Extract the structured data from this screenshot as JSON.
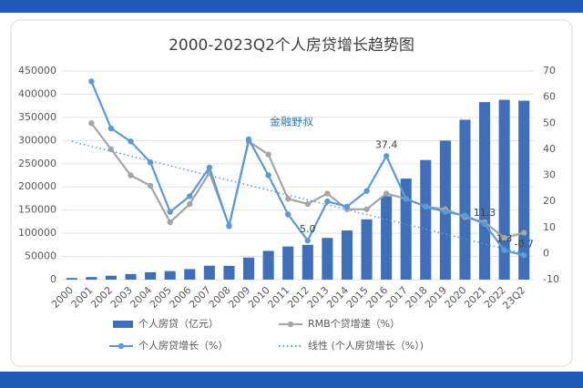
{
  "chart_data": {
    "type": "bar",
    "title": "2000-2023Q2个人房贷增长趋势图",
    "annotation": "金融野叔",
    "categories": [
      "2000",
      "2001",
      "2002",
      "2003",
      "2004",
      "2005",
      "2006",
      "2007",
      "2008",
      "2009",
      "2010",
      "2011",
      "2012",
      "2013",
      "2014",
      "2015",
      "2016",
      "2017",
      "2018",
      "2019",
      "2020",
      "2021",
      "2022",
      "23Q2"
    ],
    "ylim": [
      0,
      450000
    ],
    "yticks": [
      0,
      50000,
      100000,
      150000,
      200000,
      250000,
      300000,
      350000,
      400000,
      450000
    ],
    "y2lim": [
      -10,
      70
    ],
    "y2ticks": [
      -10,
      0,
      10,
      20,
      30,
      40,
      50,
      60,
      70
    ],
    "series": [
      {
        "name": "个人房贷（亿元）",
        "type": "bar",
        "color": "#3f6fb8",
        "values": [
          3400,
          5600,
          8300,
          12000,
          16000,
          18400,
          22700,
          30000,
          29800,
          47600,
          62000,
          71400,
          75000,
          90000,
          106000,
          130000,
          180000,
          218000,
          258000,
          300000,
          345000,
          383000,
          388000,
          386000
        ]
      },
      {
        "name": "RMB个贷增速（%）",
        "type": "line",
        "axis": "y2",
        "color": "#a5a5a5",
        "values": [
          null,
          50,
          40,
          30,
          26,
          12,
          19,
          31,
          10.8,
          43,
          38,
          21,
          19,
          23,
          17,
          17,
          23,
          21,
          18,
          17,
          14,
          12,
          6,
          8
        ]
      },
      {
        "name": "个人房贷增长（%）",
        "type": "line",
        "axis": "y2",
        "color": "#5b9bd5",
        "values": [
          null,
          66,
          48,
          43,
          35,
          16,
          22,
          33,
          10.5,
          43.8,
          30,
          15,
          5.0,
          20,
          18,
          24,
          37.4,
          21,
          18,
          16,
          14.6,
          11.3,
          1.3,
          -0.7
        ],
        "value_labels": [
          null,
          null,
          null,
          null,
          null,
          null,
          null,
          null,
          null,
          null,
          null,
          null,
          "5.0",
          null,
          null,
          null,
          "37.4",
          null,
          null,
          null,
          null,
          "11.3",
          "1.3",
          "-0.7"
        ]
      },
      {
        "name": "线性 (个人房贷增长（%）)",
        "type": "trend",
        "axis": "y2",
        "color": "#5b9bd5",
        "values": [
          43,
          41.1,
          39.3,
          37.4,
          35.5,
          33.7,
          31.8,
          29.9,
          28.1,
          26.2,
          24.3,
          22.4,
          20.6,
          18.7,
          16.8,
          15,
          13.1,
          11.2,
          9.4,
          7.5,
          5.6,
          3.7,
          1.9,
          0
        ]
      }
    ]
  }
}
